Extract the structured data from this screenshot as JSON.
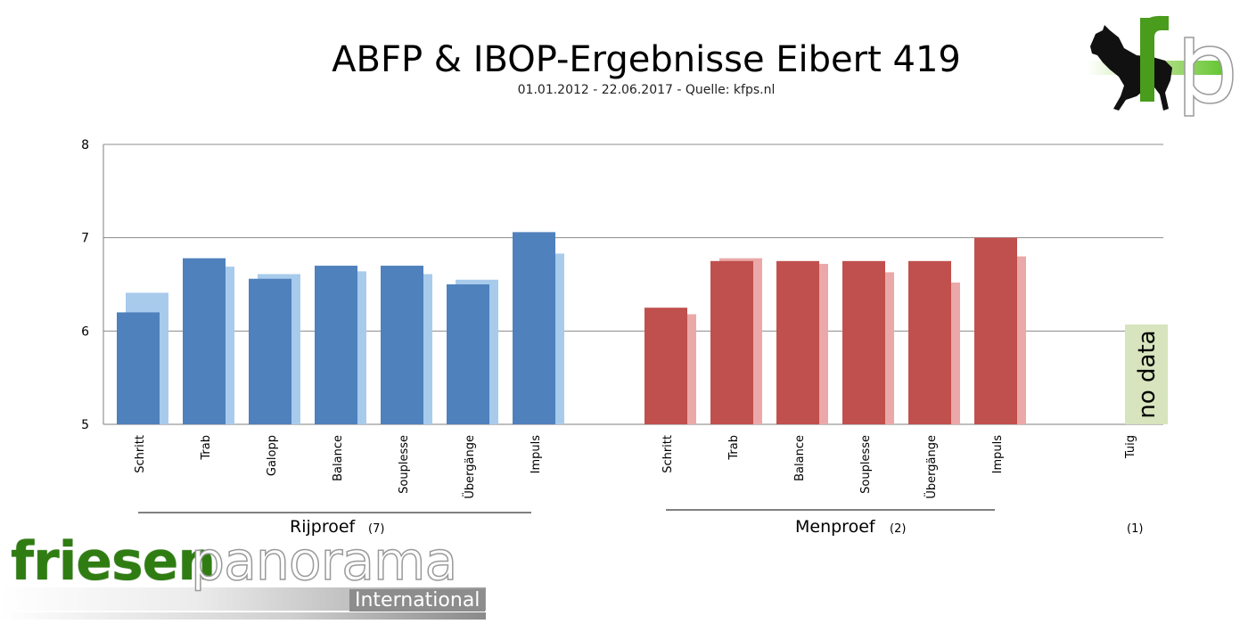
{
  "header": {
    "title": "ABFP & IBOP-Ergebnisse Eibert 419",
    "subtitle": "01.01.2012 - 22.06.2017 - Quelle: kfps.nl"
  },
  "logos": {
    "kfp_text": "fp",
    "brand_main": "friesen",
    "brand_second": "panorama",
    "brand_sub": "International"
  },
  "colors": {
    "rijproef_dark": "#4f81bd",
    "rijproef_light": "#a8cbec",
    "menproef_dark": "#c0504d",
    "menproef_light": "#eaa9a8",
    "no_data_fill": "#d7e4bd",
    "kfp_green": "#4a9c1c",
    "brand_green": "#2f7d12"
  },
  "chart_data": {
    "type": "bar",
    "ylim": [
      5,
      8
    ],
    "yticks": [
      5,
      6,
      7,
      8
    ],
    "grid": true,
    "groups": [
      {
        "label": "Rijproef",
        "count": "(7)",
        "categories": [
          "Schritt",
          "Trab",
          "Galopp",
          "Balance",
          "Souplesse",
          "Übergänge",
          "Impuls"
        ],
        "series": [
          {
            "values": [
              6.2,
              6.78,
              6.56,
              6.7,
              6.7,
              6.5,
              7.06
            ]
          },
          {
            "values": [
              6.41,
              6.69,
              6.61,
              6.64,
              6.61,
              6.55,
              6.83
            ]
          }
        ]
      },
      {
        "label": "Menproef",
        "count": "(2)",
        "categories": [
          "Schritt",
          "Trab",
          "Balance",
          "Souplesse",
          "Übergänge",
          "Impuls"
        ],
        "series": [
          {
            "values": [
              6.25,
              6.75,
              6.75,
              6.75,
              6.75,
              7.0
            ]
          },
          {
            "values": [
              6.18,
              6.78,
              6.72,
              6.63,
              6.52,
              6.8
            ]
          }
        ]
      },
      {
        "label": "",
        "count": "(1)",
        "categories": [
          "Tuig"
        ],
        "no_data_text": "no data",
        "no_data_level": 6.07
      }
    ]
  }
}
